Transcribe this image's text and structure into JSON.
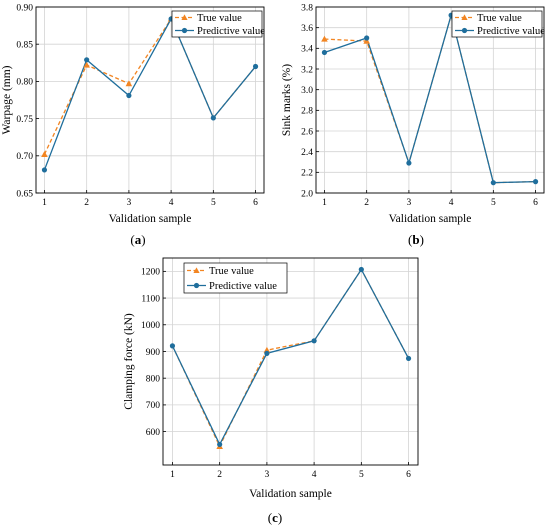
{
  "chart_data": [
    {
      "type": "line",
      "panel": "(a)",
      "panel_letter": "a",
      "xlabel": "Validation sample",
      "ylabel": "Warpage (mm)",
      "x": [
        1,
        2,
        3,
        4,
        5,
        6
      ],
      "xlim": [
        0.8,
        6.2
      ],
      "ylim": [
        0.65,
        0.9
      ],
      "yticks": [
        0.65,
        0.7,
        0.75,
        0.8,
        0.85,
        0.9
      ],
      "ytick_labels": [
        "0.65",
        "0.70",
        "0.75",
        "0.80",
        "0.85",
        "0.90"
      ],
      "grid": true,
      "legend_position": "top-right",
      "series": [
        {
          "name": "True value",
          "values": [
            0.702,
            0.822,
            0.797,
            0.884,
            null,
            null
          ],
          "color": "#F28522",
          "style": "dashed",
          "marker": "triangle"
        },
        {
          "name": "Predictive value",
          "values": [
            0.681,
            0.829,
            0.781,
            0.884,
            0.751,
            0.82
          ],
          "color": "#1F6E9C",
          "style": "solid",
          "marker": "circle"
        }
      ]
    },
    {
      "type": "line",
      "panel": "(b)",
      "panel_letter": "b",
      "xlabel": "Validation sample",
      "ylabel": "Sink marks (%)",
      "x": [
        1,
        2,
        3,
        4,
        5,
        6
      ],
      "xlim": [
        0.8,
        6.2
      ],
      "ylim": [
        2.0,
        3.8
      ],
      "yticks": [
        2.0,
        2.2,
        2.4,
        2.6,
        2.8,
        3.0,
        3.2,
        3.4,
        3.6,
        3.8
      ],
      "ytick_labels": [
        "2.0",
        "2.2",
        "2.4",
        "2.6",
        "2.8",
        "3.0",
        "3.2",
        "3.4",
        "3.6",
        "3.8"
      ],
      "grid": true,
      "legend_position": "top-right",
      "series": [
        {
          "name": "True value",
          "values": [
            3.49,
            3.47,
            null,
            null,
            null,
            null
          ],
          "color": "#F28522",
          "style": "dashed",
          "marker": "triangle"
        },
        {
          "name": "Predictive value",
          "values": [
            3.36,
            3.5,
            2.29,
            3.72,
            2.1,
            2.11
          ],
          "color": "#1F6E9C",
          "style": "solid",
          "marker": "circle"
        }
      ]
    },
    {
      "type": "line",
      "panel": "(c)",
      "panel_letter": "c",
      "xlabel": "Validation sample",
      "ylabel": "Clamping force (kN)",
      "x": [
        1,
        2,
        3,
        4,
        5,
        6
      ],
      "xlim": [
        0.8,
        6.2
      ],
      "ylim": [
        475,
        1250
      ],
      "yticks": [
        600,
        700,
        800,
        900,
        1000,
        1100,
        1200
      ],
      "ytick_labels": [
        "600",
        "700",
        "800",
        "900",
        "1000",
        "1100",
        "1200"
      ],
      "grid": true,
      "legend_position": "top-left",
      "series": [
        {
          "name": "True value",
          "values": [
            null,
            545,
            905,
            null,
            null,
            null
          ],
          "color": "#F28522",
          "style": "dashed",
          "marker": "triangle"
        },
        {
          "name": "Predictive value",
          "values": [
            921,
            552,
            893,
            940,
            1207,
            874
          ],
          "color": "#1F6E9C",
          "style": "solid",
          "marker": "circle"
        }
      ]
    }
  ]
}
